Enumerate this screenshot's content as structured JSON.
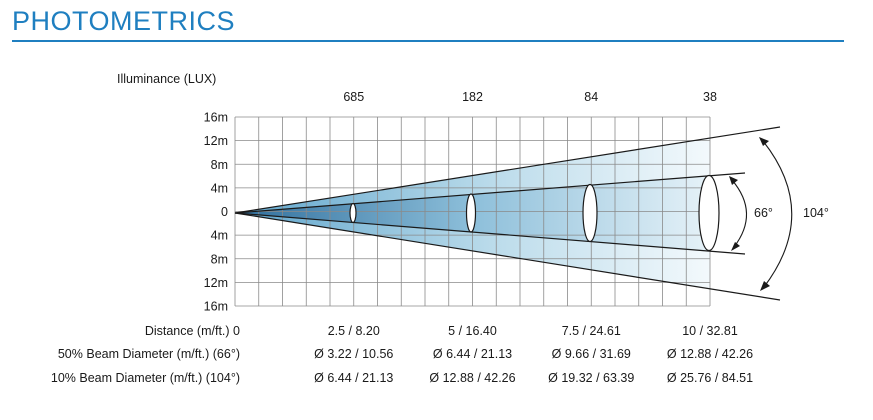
{
  "title": "PHOTOMETRICS",
  "illuminance_label": "Illuminance (LUX)",
  "colors": {
    "accent": "#1f7fc0",
    "grid": "#8a8a8a",
    "beam_dark": "#6aaed0",
    "beam_light": "#eef6fa"
  },
  "chart_data": {
    "type": "beam-diagram",
    "y_ticks": [
      "16m",
      "12m",
      "8m",
      "4m",
      "0",
      "4m",
      "8m",
      "12m",
      "16m"
    ],
    "illuminance_values": [
      "685",
      "182",
      "84",
      "38"
    ],
    "beam_angles": {
      "inner": "66°",
      "outer": "104°"
    },
    "rows": [
      {
        "label": "Distance (m/ft.) 0",
        "values": [
          "2.5 / 8.20",
          "5 / 16.40",
          "7.5 / 24.61",
          "10 / 32.81"
        ]
      },
      {
        "label": "50% Beam Diameter (m/ft.) (66°)",
        "values": [
          "Ø 3.22 / 10.56",
          "Ø 6.44 / 21.13",
          "Ø 9.66 / 31.69",
          "Ø 12.88 / 42.26"
        ]
      },
      {
        "label": "10% Beam Diameter (m/ft.) (104°)",
        "values": [
          "Ø 6.44 / 21.13",
          "Ø 12.88 / 42.26",
          "Ø 19.32 / 63.39",
          "Ø 25.76 / 84.51"
        ]
      }
    ]
  }
}
